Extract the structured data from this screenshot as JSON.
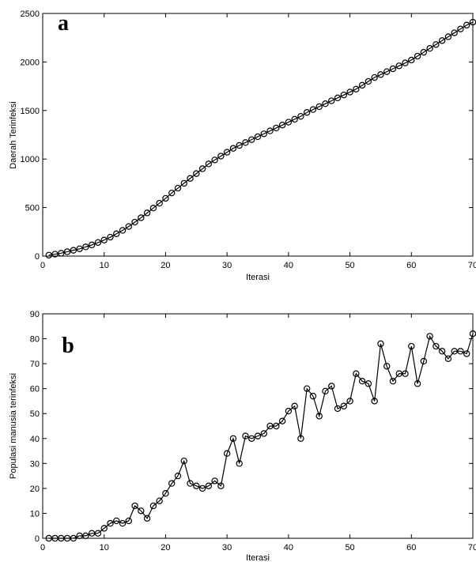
{
  "chart_data": [
    {
      "type": "line",
      "panel_letter": "a",
      "title": "",
      "xlabel": "Iterasi",
      "ylabel": "Daerah Terinfeksi",
      "xlim": [
        0,
        70
      ],
      "ylim": [
        0,
        2500
      ],
      "x_ticks": [
        0,
        10,
        20,
        30,
        40,
        50,
        60,
        70
      ],
      "y_ticks": [
        0,
        500,
        1000,
        1500,
        2000,
        2500
      ],
      "x_tick_labels": [
        "0",
        "10",
        "20",
        "30",
        "40",
        "50",
        "60",
        "70"
      ],
      "y_tick_labels": [
        "0",
        "500",
        "1000",
        "1500",
        "2000",
        "2500"
      ],
      "grid": false,
      "marker": "circle",
      "series": [
        {
          "x": [
            1,
            2,
            3,
            4,
            5,
            6,
            7,
            8,
            9,
            10,
            11,
            12,
            13,
            14,
            15,
            16,
            17,
            18,
            19,
            20,
            21,
            22,
            23,
            24,
            25,
            26,
            27,
            28,
            29,
            30,
            31,
            32,
            33,
            34,
            35,
            36,
            37,
            38,
            39,
            40,
            41,
            42,
            43,
            44,
            45,
            46,
            47,
            48,
            49,
            50,
            51,
            52,
            53,
            54,
            55,
            56,
            57,
            58,
            59,
            60,
            61,
            62,
            63,
            64,
            65,
            66,
            67,
            68,
            69,
            70
          ],
          "values": [
            10,
            20,
            30,
            45,
            60,
            75,
            95,
            115,
            140,
            165,
            195,
            230,
            265,
            305,
            350,
            395,
            445,
            495,
            545,
            595,
            650,
            700,
            750,
            800,
            850,
            900,
            950,
            990,
            1030,
            1070,
            1110,
            1140,
            1170,
            1200,
            1230,
            1260,
            1290,
            1320,
            1350,
            1380,
            1410,
            1440,
            1480,
            1510,
            1540,
            1570,
            1600,
            1630,
            1660,
            1690,
            1720,
            1760,
            1800,
            1840,
            1870,
            1900,
            1930,
            1960,
            1990,
            2020,
            2060,
            2100,
            2140,
            2180,
            2220,
            2260,
            2300,
            2340,
            2380,
            2410
          ]
        }
      ]
    },
    {
      "type": "line",
      "panel_letter": "b",
      "title": "",
      "xlabel": "Iterasi",
      "ylabel": "Populasi manusia terinfeksi",
      "xlim": [
        0,
        70
      ],
      "ylim": [
        0,
        90
      ],
      "x_ticks": [
        0,
        10,
        20,
        30,
        40,
        50,
        60,
        70
      ],
      "y_ticks": [
        0,
        10,
        20,
        30,
        40,
        50,
        60,
        70,
        80,
        90
      ],
      "x_tick_labels": [
        "0",
        "10",
        "20",
        "30",
        "40",
        "50",
        "60",
        "70"
      ],
      "y_tick_labels": [
        "0",
        "10",
        "20",
        "30",
        "40",
        "50",
        "60",
        "70",
        "80",
        "90"
      ],
      "grid": false,
      "marker": "circle",
      "series": [
        {
          "x": [
            1,
            2,
            3,
            4,
            5,
            6,
            7,
            8,
            9,
            10,
            11,
            12,
            13,
            14,
            15,
            16,
            17,
            18,
            19,
            20,
            21,
            22,
            23,
            24,
            25,
            26,
            27,
            28,
            29,
            30,
            31,
            32,
            33,
            34,
            35,
            36,
            37,
            38,
            39,
            40,
            41,
            42,
            43,
            44,
            45,
            46,
            47,
            48,
            49,
            50,
            51,
            52,
            53,
            54,
            55,
            56,
            57,
            58,
            59,
            60,
            61,
            62,
            63,
            64,
            65,
            66,
            67,
            68,
            69,
            70
          ],
          "values": [
            0,
            0,
            0,
            0,
            0,
            1,
            1,
            2,
            2,
            4,
            6,
            7,
            6,
            7,
            13,
            11,
            8,
            13,
            15,
            18,
            22,
            25,
            31,
            22,
            21,
            20,
            21,
            23,
            21,
            34,
            40,
            30,
            41,
            40,
            41,
            42,
            45,
            45,
            47,
            51,
            53,
            40,
            60,
            57,
            49,
            59,
            61,
            52,
            53,
            55,
            66,
            63,
            62,
            55,
            78,
            69,
            63,
            66,
            66,
            77,
            62,
            71,
            81,
            77,
            75,
            72,
            75,
            75,
            74,
            82
          ]
        }
      ]
    }
  ]
}
